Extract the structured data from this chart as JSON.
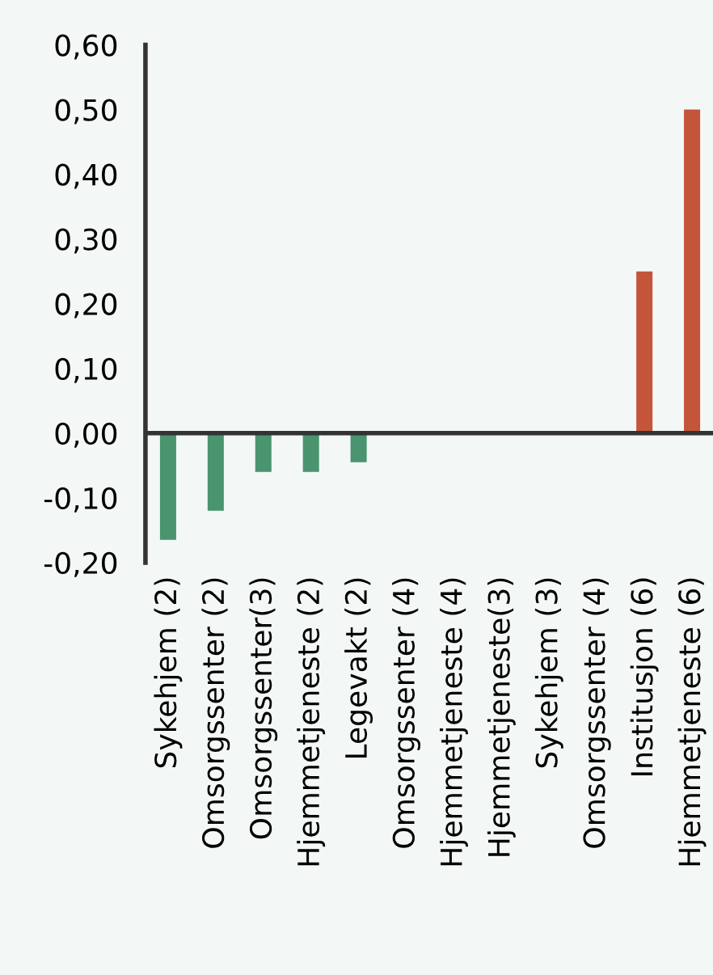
{
  "chart_data": {
    "type": "bar",
    "categories": [
      "Sykehjem (2)",
      "Omsorgssenter (2)",
      "Omsorgssenter(3)",
      "Hjemmetjeneste (2)",
      "Legevakt (2)",
      "Omsorgssenter (4)",
      "Hjemmetjeneste (4)",
      "Hjemmetjeneste(3)",
      "Sykehjem (3)",
      "Omsorgssenter (4)",
      "Institusjon (6)",
      "Hjemmetjeneste (6)"
    ],
    "values": [
      -0.165,
      -0.12,
      -0.06,
      -0.06,
      -0.045,
      0,
      0,
      0,
      0,
      0,
      0.25,
      0.5
    ],
    "colors": [
      "#4a9470",
      "#4a9470",
      "#4a9470",
      "#4a9470",
      "#4a9470",
      "#4a9470",
      "#4a9470",
      "#4a9470",
      "#4a9470",
      "#4a9470",
      "#c4553a",
      "#c4553a"
    ],
    "ylim": [
      -0.2,
      0.6
    ],
    "yticks": [
      {
        "value": -0.2,
        "label": "-0,20"
      },
      {
        "value": -0.1,
        "label": "-0,10"
      },
      {
        "value": 0,
        "label": "0,00"
      },
      {
        "value": 0.1,
        "label": "0,10"
      },
      {
        "value": 0.2,
        "label": "0,20"
      },
      {
        "value": 0.3,
        "label": "0,30"
      },
      {
        "value": 0.4,
        "label": "0,40"
      },
      {
        "value": 0.5,
        "label": "0,50"
      },
      {
        "value": 0.6,
        "label": "0,60"
      }
    ],
    "ref_lines": [
      {
        "axis": "y",
        "value": 0,
        "color": "#333333",
        "line_style": "solid"
      }
    ],
    "legend": false
  }
}
